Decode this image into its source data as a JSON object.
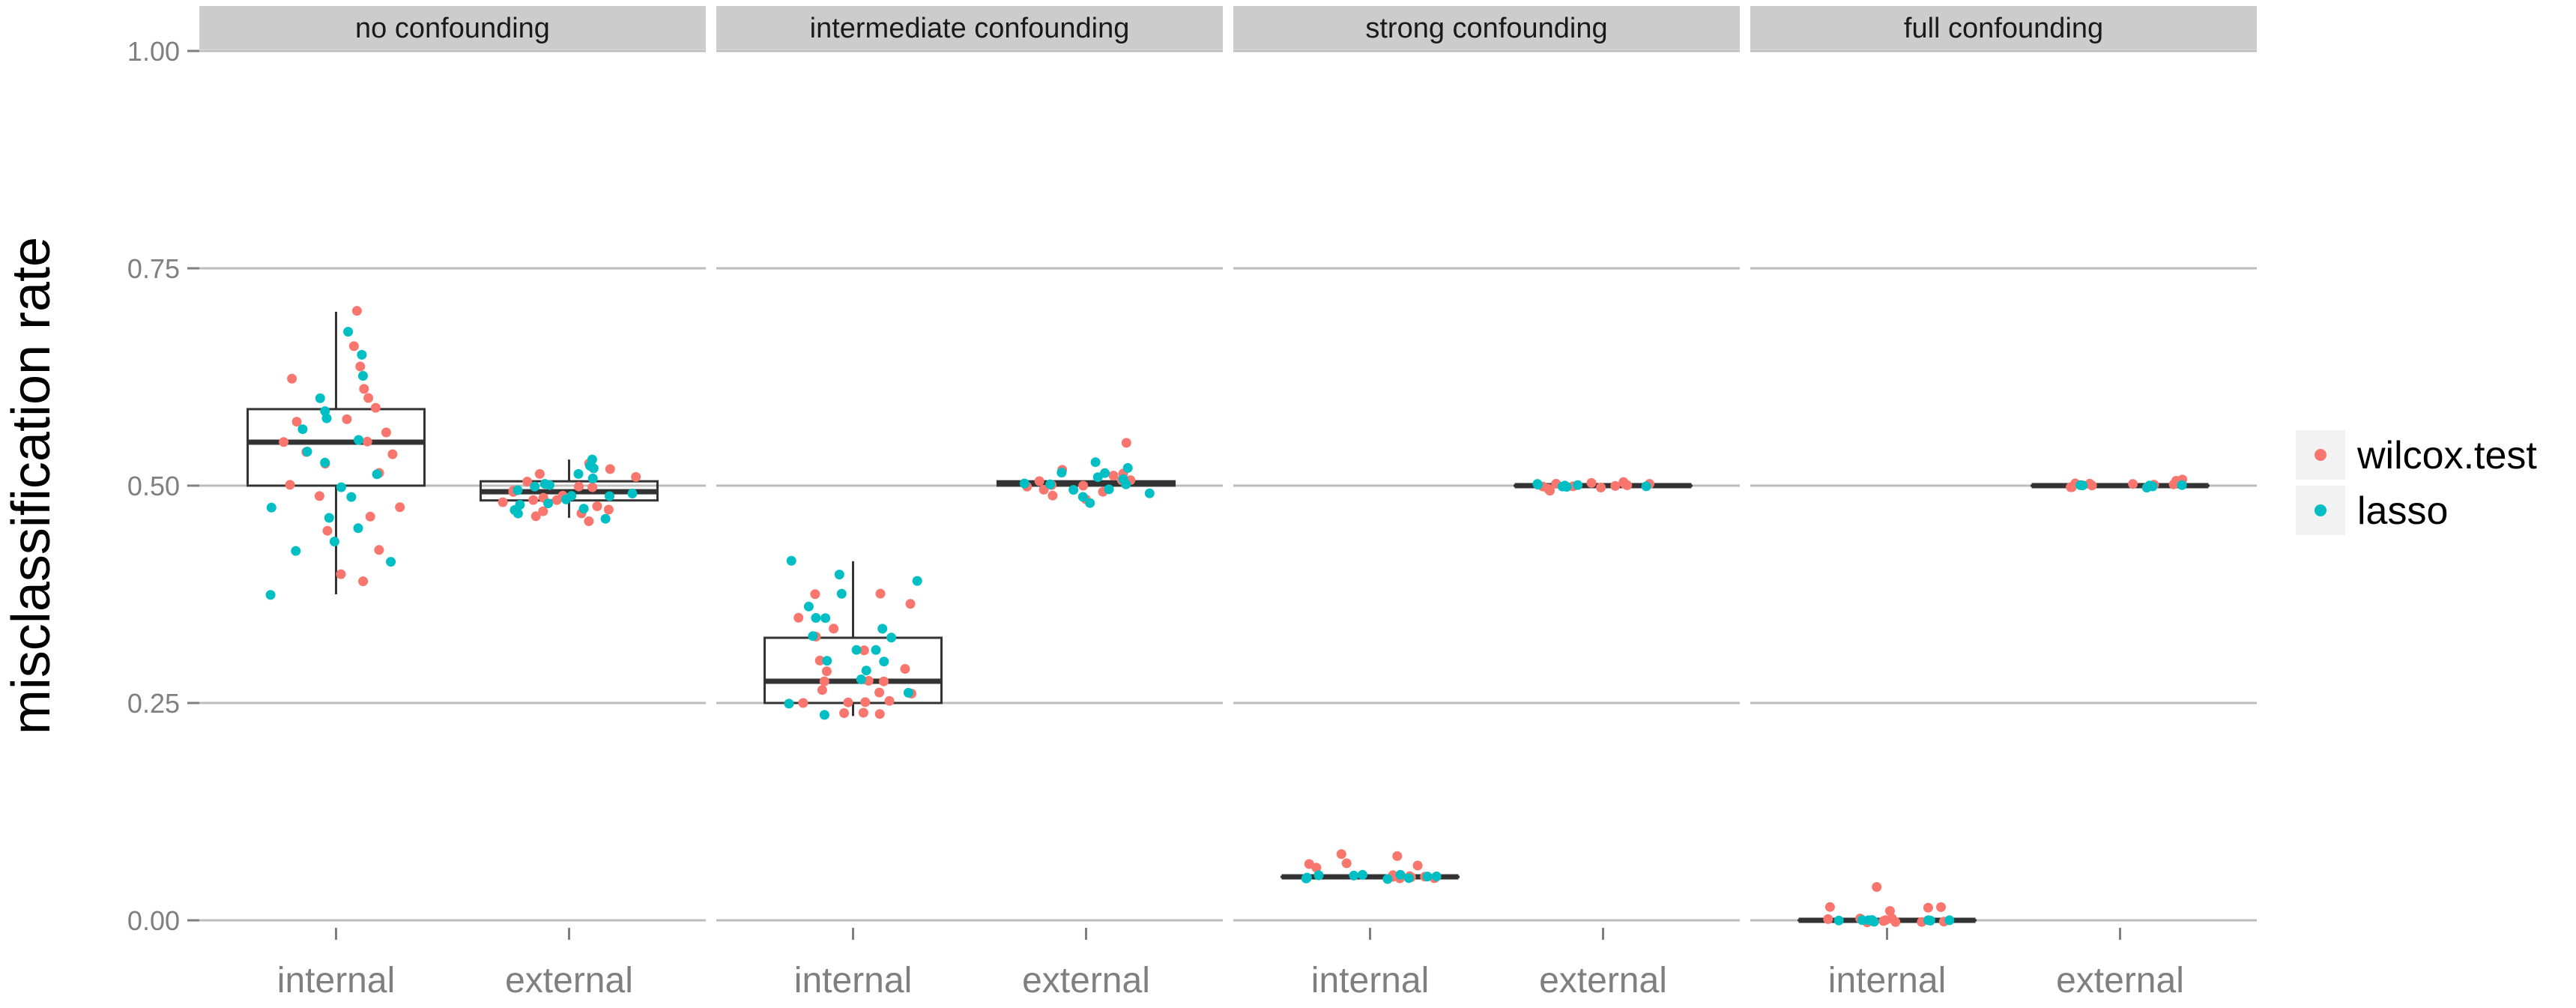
{
  "chart_data": {
    "type": "boxplot-jitter",
    "ylabel": "misclassification rate",
    "xlabel": "",
    "ylim": [
      0,
      1
    ],
    "y_ticks": [
      "0.00",
      "0.25",
      "0.50",
      "0.75",
      "1.00"
    ],
    "grid": true,
    "legend_position": "right",
    "categories": [
      "internal",
      "external"
    ],
    "series_colors": {
      "wilcox.test": "#F8766D",
      "lasso": "#00BFC4"
    },
    "legend": [
      {
        "name": "wilcox.test",
        "color": "#F8766D"
      },
      {
        "name": "lasso",
        "color": "#00BFC4"
      }
    ],
    "panels": [
      {
        "title": "no confounding",
        "boxes": [
          {
            "category": "internal",
            "min": 0.375,
            "q1": 0.5,
            "median": 0.55,
            "q3": 0.588,
            "max": 0.7
          },
          {
            "category": "external",
            "min": 0.463,
            "q1": 0.483,
            "median": 0.493,
            "q3": 0.505,
            "max": 0.53
          }
        ],
        "points": [
          {
            "category": "internal",
            "series": "wilcox.test",
            "values": [
              0.7,
              0.663,
              0.638,
              0.625,
              0.613,
              0.6,
              0.588,
              0.575,
              0.575,
              0.563,
              0.55,
              0.55,
              0.538,
              0.538,
              0.525,
              0.513,
              0.5,
              0.488,
              0.475,
              0.463,
              0.45,
              0.425,
              0.4,
              0.388
            ]
          },
          {
            "category": "internal",
            "series": "lasso",
            "values": [
              0.675,
              0.65,
              0.625,
              0.6,
              0.588,
              0.575,
              0.563,
              0.55,
              0.538,
              0.525,
              0.513,
              0.5,
              0.488,
              0.475,
              0.463,
              0.45,
              0.438,
              0.425,
              0.413,
              0.375
            ]
          },
          {
            "category": "external",
            "series": "wilcox.test",
            "values": [
              0.525,
              0.52,
              0.515,
              0.51,
              0.505,
              0.5,
              0.5,
              0.495,
              0.493,
              0.49,
              0.488,
              0.485,
              0.483,
              0.48,
              0.478,
              0.475,
              0.47,
              0.468,
              0.465,
              0.46
            ]
          },
          {
            "category": "external",
            "series": "lasso",
            "values": [
              0.53,
              0.525,
              0.518,
              0.512,
              0.508,
              0.503,
              0.5,
              0.498,
              0.495,
              0.492,
              0.49,
              0.487,
              0.484,
              0.48,
              0.477,
              0.473,
              0.47,
              0.466,
              0.463
            ]
          }
        ]
      },
      {
        "title": "intermediate confounding",
        "boxes": [
          {
            "category": "internal",
            "min": 0.235,
            "q1": 0.25,
            "median": 0.275,
            "q3": 0.325,
            "max": 0.413
          },
          {
            "category": "external",
            "min": 0.5,
            "q1": 0.5,
            "median": 0.503,
            "q3": 0.505,
            "max": 0.505
          }
        ],
        "points": [
          {
            "category": "internal",
            "series": "wilcox.test",
            "values": [
              0.375,
              0.375,
              0.363,
              0.35,
              0.338,
              0.325,
              0.313,
              0.3,
              0.288,
              0.275,
              0.275,
              0.263,
              0.263,
              0.25,
              0.25,
              0.25,
              0.238,
              0.238,
              0.238,
              0.25,
              0.263,
              0.275,
              0.288
            ]
          },
          {
            "category": "internal",
            "series": "lasso",
            "values": [
              0.413,
              0.4,
              0.388,
              0.375,
              0.363,
              0.35,
              0.338,
              0.325,
              0.313,
              0.3,
              0.288,
              0.275,
              0.263,
              0.25,
              0.238,
              0.3,
              0.313,
              0.325,
              0.35
            ]
          },
          {
            "category": "external",
            "series": "wilcox.test",
            "values": [
              0.548,
              0.52,
              0.515,
              0.51,
              0.508,
              0.505,
              0.503,
              0.5,
              0.5,
              0.498,
              0.495,
              0.493,
              0.49,
              0.485
            ]
          },
          {
            "category": "external",
            "series": "lasso",
            "values": [
              0.525,
              0.52,
              0.515,
              0.513,
              0.51,
              0.507,
              0.505,
              0.503,
              0.5,
              0.498,
              0.495,
              0.492,
              0.488,
              0.48
            ]
          }
        ]
      },
      {
        "title": "strong confounding",
        "boxes": [
          {
            "category": "internal",
            "min": 0.05,
            "q1": 0.05,
            "median": 0.05,
            "q3": 0.05,
            "max": 0.05
          },
          {
            "category": "external",
            "min": 0.5,
            "q1": 0.5,
            "median": 0.5,
            "q3": 0.5,
            "max": 0.5
          }
        ],
        "points": [
          {
            "category": "internal",
            "series": "wilcox.test",
            "values": [
              0.075,
              0.075,
              0.063,
              0.063,
              0.063,
              0.063,
              0.05,
              0.05,
              0.05,
              0.05,
              0.05,
              0.05,
              0.05,
              0.05
            ]
          },
          {
            "category": "internal",
            "series": "lasso",
            "values": [
              0.05,
              0.05,
              0.05,
              0.05,
              0.05,
              0.05,
              0.05,
              0.05,
              0.05,
              0.05
            ]
          },
          {
            "category": "external",
            "series": "wilcox.test",
            "values": [
              0.505,
              0.503,
              0.5,
              0.5,
              0.5,
              0.498,
              0.495,
              0.493,
              0.5,
              0.5,
              0.5,
              0.5
            ]
          },
          {
            "category": "external",
            "series": "lasso",
            "values": [
              0.5,
              0.5,
              0.5,
              0.5,
              0.5,
              0.5,
              0.5
            ]
          }
        ]
      },
      {
        "title": "full confounding",
        "boxes": [
          {
            "category": "internal",
            "min": 0.0,
            "q1": 0.0,
            "median": 0.0,
            "q3": 0.0,
            "max": 0.0
          },
          {
            "category": "external",
            "min": 0.5,
            "q1": 0.5,
            "median": 0.5,
            "q3": 0.5,
            "max": 0.5
          }
        ],
        "points": [
          {
            "category": "internal",
            "series": "wilcox.test",
            "values": [
              0.038,
              0.013,
              0.013,
              0.013,
              0.013,
              0.0,
              0.0,
              0.0,
              0.0,
              0.0,
              0.0,
              0.0,
              0.0,
              0.0,
              0.0
            ]
          },
          {
            "category": "internal",
            "series": "lasso",
            "values": [
              0.0,
              0.0,
              0.0,
              0.0,
              0.0,
              0.0,
              0.0,
              0.0
            ]
          },
          {
            "category": "external",
            "series": "wilcox.test",
            "values": [
              0.508,
              0.505,
              0.503,
              0.5,
              0.5,
              0.5,
              0.5,
              0.5,
              0.5,
              0.5
            ]
          },
          {
            "category": "external",
            "series": "lasso",
            "values": [
              0.5,
              0.5,
              0.5,
              0.5,
              0.5,
              0.5
            ]
          }
        ]
      }
    ]
  }
}
